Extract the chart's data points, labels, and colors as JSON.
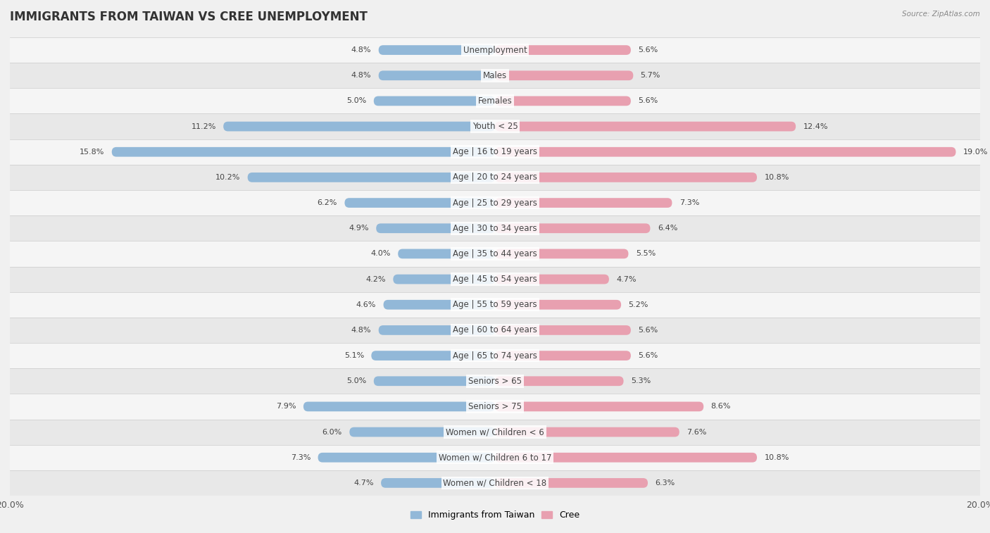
{
  "title": "IMMIGRANTS FROM TAIWAN VS CREE UNEMPLOYMENT",
  "source": "Source: ZipAtlas.com",
  "categories": [
    "Unemployment",
    "Males",
    "Females",
    "Youth < 25",
    "Age | 16 to 19 years",
    "Age | 20 to 24 years",
    "Age | 25 to 29 years",
    "Age | 30 to 34 years",
    "Age | 35 to 44 years",
    "Age | 45 to 54 years",
    "Age | 55 to 59 years",
    "Age | 60 to 64 years",
    "Age | 65 to 74 years",
    "Seniors > 65",
    "Seniors > 75",
    "Women w/ Children < 6",
    "Women w/ Children 6 to 17",
    "Women w/ Children < 18"
  ],
  "left_values": [
    4.8,
    4.8,
    5.0,
    11.2,
    15.8,
    10.2,
    6.2,
    4.9,
    4.0,
    4.2,
    4.6,
    4.8,
    5.1,
    5.0,
    7.9,
    6.0,
    7.3,
    4.7
  ],
  "right_values": [
    5.6,
    5.7,
    5.6,
    12.4,
    19.0,
    10.8,
    7.3,
    6.4,
    5.5,
    4.7,
    5.2,
    5.6,
    5.6,
    5.3,
    8.6,
    7.6,
    10.8,
    6.3
  ],
  "left_color": "#92b8d8",
  "right_color": "#e8a0b0",
  "row_color_even": "#f5f5f5",
  "row_color_odd": "#e8e8e8",
  "background_color": "#f0f0f0",
  "axis_max": 20.0,
  "legend_left": "Immigrants from Taiwan",
  "legend_right": "Cree",
  "title_fontsize": 12,
  "label_fontsize": 8.5,
  "value_fontsize": 8
}
